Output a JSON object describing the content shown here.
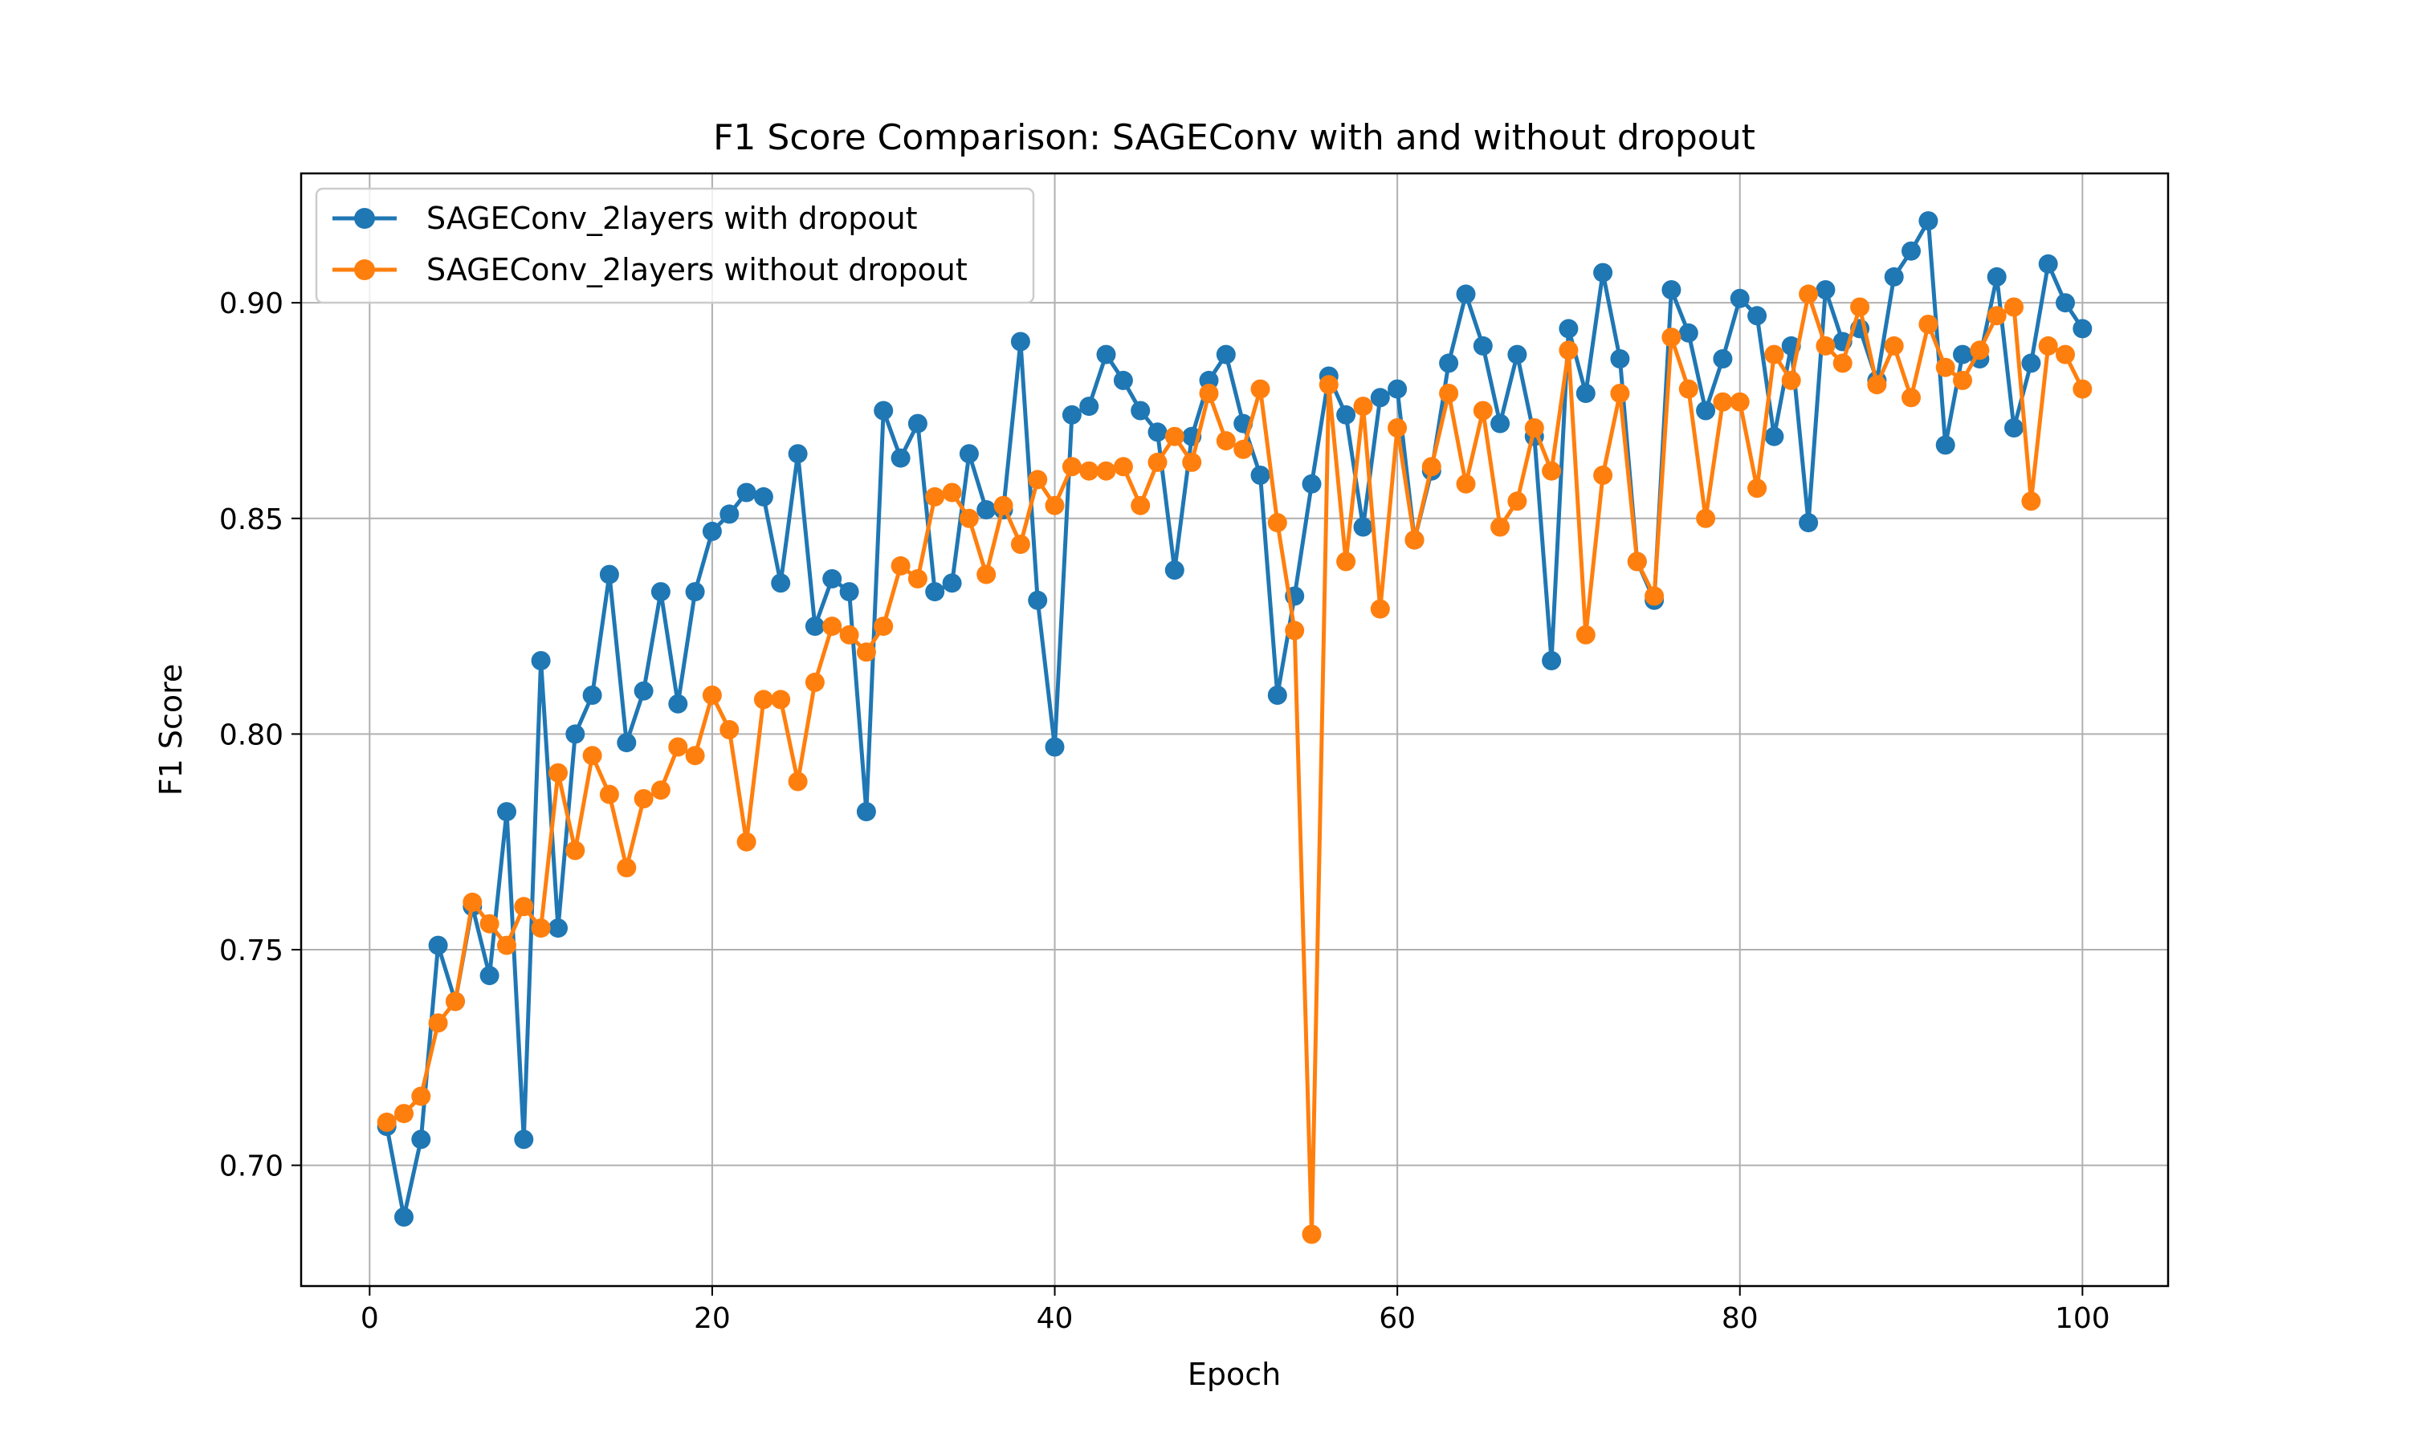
{
  "chart_data": {
    "type": "line",
    "title": "F1 Score Comparison: SAGEConv with and without dropout",
    "xlabel": "Epoch",
    "ylabel": "F1 Score",
    "xlim": [
      -4,
      105
    ],
    "ylim": [
      0.672,
      0.93
    ],
    "xticks": [
      0,
      20,
      40,
      60,
      80,
      100
    ],
    "xtick_labels": [
      "0",
      "20",
      "40",
      "60",
      "80",
      "100"
    ],
    "yticks": [
      0.7,
      0.75,
      0.8,
      0.85,
      0.9
    ],
    "ytick_labels": [
      "0.70",
      "0.75",
      "0.80",
      "0.85",
      "0.90"
    ],
    "grid": true,
    "legend_position": "upper-left",
    "x": [
      1,
      2,
      3,
      4,
      5,
      6,
      7,
      8,
      9,
      10,
      11,
      12,
      13,
      14,
      15,
      16,
      17,
      18,
      19,
      20,
      21,
      22,
      23,
      24,
      25,
      26,
      27,
      28,
      29,
      30,
      31,
      32,
      33,
      34,
      35,
      36,
      37,
      38,
      39,
      40,
      41,
      42,
      43,
      44,
      45,
      46,
      47,
      48,
      49,
      50,
      51,
      52,
      53,
      54,
      55,
      56,
      57,
      58,
      59,
      60,
      61,
      62,
      63,
      64,
      65,
      66,
      67,
      68,
      69,
      70,
      71,
      72,
      73,
      74,
      75,
      76,
      77,
      78,
      79,
      80,
      81,
      82,
      83,
      84,
      85,
      86,
      87,
      88,
      89,
      90,
      91,
      92,
      93,
      94,
      95,
      96,
      97,
      98,
      99,
      100
    ],
    "series": [
      {
        "name": "SAGEConv_2layers with dropout",
        "color": "#1f77b4",
        "values": [
          0.709,
          0.688,
          0.706,
          0.751,
          0.738,
          0.76,
          0.744,
          0.782,
          0.706,
          0.817,
          0.755,
          0.8,
          0.809,
          0.837,
          0.798,
          0.81,
          0.833,
          0.807,
          0.833,
          0.847,
          0.851,
          0.856,
          0.855,
          0.835,
          0.865,
          0.825,
          0.836,
          0.833,
          0.782,
          0.875,
          0.864,
          0.872,
          0.833,
          0.835,
          0.865,
          0.852,
          0.852,
          0.891,
          0.831,
          0.797,
          0.874,
          0.876,
          0.888,
          0.882,
          0.875,
          0.87,
          0.838,
          0.869,
          0.882,
          0.888,
          0.872,
          0.86,
          0.809,
          0.832,
          0.858,
          0.883,
          0.874,
          0.848,
          0.878,
          0.88,
          0.845,
          0.861,
          0.886,
          0.902,
          0.89,
          0.872,
          0.888,
          0.869,
          0.817,
          0.894,
          0.879,
          0.907,
          0.887,
          0.84,
          0.831,
          0.903,
          0.893,
          0.875,
          0.887,
          0.901,
          0.897,
          0.869,
          0.89,
          0.849,
          0.903,
          0.891,
          0.894,
          0.882,
          0.906,
          0.912,
          0.919,
          0.867,
          0.888,
          0.887,
          0.906,
          0.871,
          0.886,
          0.909,
          0.9,
          0.894
        ]
      },
      {
        "name": "SAGEConv_2layers without dropout",
        "color": "#ff7f0e",
        "values": [
          0.71,
          0.712,
          0.716,
          0.733,
          0.738,
          0.761,
          0.756,
          0.751,
          0.76,
          0.755,
          0.791,
          0.773,
          0.795,
          0.786,
          0.769,
          0.785,
          0.787,
          0.797,
          0.795,
          0.809,
          0.801,
          0.775,
          0.808,
          0.808,
          0.789,
          0.812,
          0.825,
          0.823,
          0.819,
          0.825,
          0.839,
          0.836,
          0.855,
          0.856,
          0.85,
          0.837,
          0.853,
          0.844,
          0.859,
          0.853,
          0.862,
          0.861,
          0.861,
          0.862,
          0.853,
          0.863,
          0.869,
          0.863,
          0.879,
          0.868,
          0.866,
          0.88,
          0.849,
          0.824,
          0.684,
          0.881,
          0.84,
          0.876,
          0.829,
          0.871,
          0.845,
          0.862,
          0.879,
          0.858,
          0.875,
          0.848,
          0.854,
          0.871,
          0.861,
          0.889,
          0.823,
          0.86,
          0.879,
          0.84,
          0.832,
          0.892,
          0.88,
          0.85,
          0.877,
          0.877,
          0.857,
          0.888,
          0.882,
          0.902,
          0.89,
          0.886,
          0.899,
          0.881,
          0.89,
          0.878,
          0.895,
          0.885,
          0.882,
          0.889,
          0.897,
          0.899,
          0.854,
          0.89,
          0.888,
          0.88
        ]
      }
    ]
  }
}
